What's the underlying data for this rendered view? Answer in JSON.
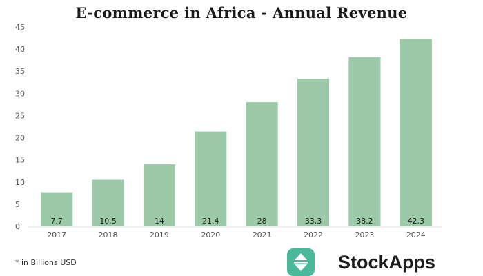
{
  "chart_data": {
    "type": "bar",
    "title": "E-commerce in Africa - Annual Revenue",
    "xlabel": "",
    "ylabel": "",
    "categories": [
      "2017",
      "2018",
      "2019",
      "2020",
      "2021",
      "2022",
      "2023",
      "2024"
    ],
    "values": [
      7.7,
      10.5,
      14,
      21.4,
      28,
      33.3,
      38.2,
      42.3
    ],
    "ylim": [
      0,
      45
    ],
    "yticks": [
      0,
      5,
      10,
      15,
      20,
      25,
      30,
      35,
      40,
      45
    ],
    "grid": false,
    "legend": "none",
    "bar_color": "#9ccaa8",
    "data_labels": true
  },
  "footnote": "* in Billions USD",
  "brand": {
    "name": "StockApps",
    "logo_icon": "up-down-arrows-icon",
    "logo_color": "#4bb89a"
  }
}
